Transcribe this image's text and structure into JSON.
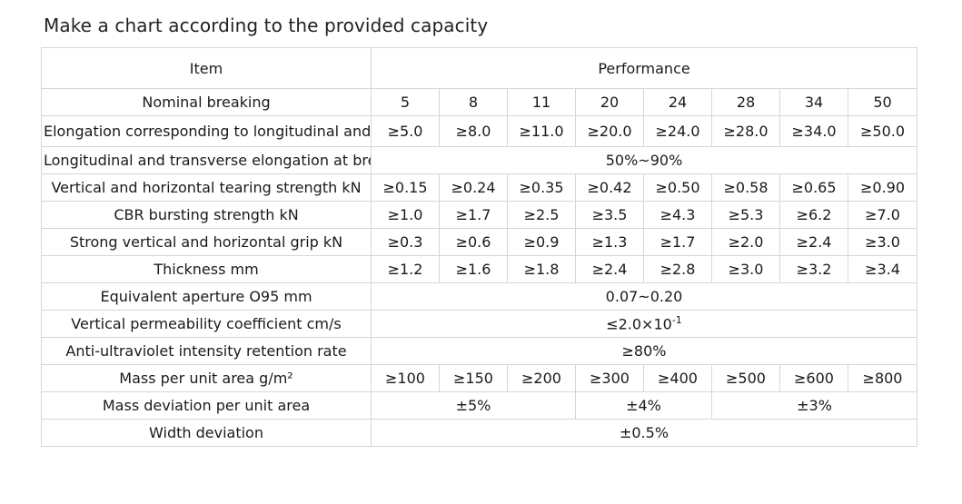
{
  "title": "Make a chart according to the provided capacity",
  "header": {
    "item": "Item",
    "performance": "Performance"
  },
  "rows": {
    "nominal": {
      "label": "Nominal breaking",
      "values": [
        "5",
        "8",
        "11",
        "20",
        "24",
        "28",
        "34",
        "50"
      ]
    },
    "elongation_std": {
      "label": "Elongation corresponding to longitudinal and transverse standard strength",
      "values": [
        "≥5.0",
        "≥8.0",
        "≥11.0",
        "≥20.0",
        "≥24.0",
        "≥28.0",
        "≥34.0",
        "≥50.0"
      ]
    },
    "elongation_break": {
      "label": "Longitudinal and transverse elongation at break",
      "value": "50%~90%"
    },
    "tearing": {
      "label": "Vertical and horizontal tearing strength kN",
      "values": [
        "≥0.15",
        "≥0.24",
        "≥0.35",
        "≥0.42",
        "≥0.50",
        "≥0.58",
        "≥0.65",
        "≥0.90"
      ]
    },
    "cbr": {
      "label": "CBR bursting strength kN",
      "values": [
        "≥1.0",
        "≥1.7",
        "≥2.5",
        "≥3.5",
        "≥4.3",
        "≥5.3",
        "≥6.2",
        "≥7.0"
      ]
    },
    "grip": {
      "label": "Strong vertical and horizontal grip kN",
      "values": [
        "≥0.3",
        "≥0.6",
        "≥0.9",
        "≥1.3",
        "≥1.7",
        "≥2.0",
        "≥2.4",
        "≥3.0"
      ]
    },
    "thickness": {
      "label": "Thickness mm",
      "values": [
        "≥1.2",
        "≥1.6",
        "≥1.8",
        "≥2.4",
        "≥2.8",
        "≥3.0",
        "≥3.2",
        "≥3.4"
      ]
    },
    "aperture": {
      "label": "Equivalent aperture O95 mm",
      "value": "0.07~0.20"
    },
    "permeability": {
      "label": "Vertical permeability coefficient cm/s",
      "value_base": "≤2.0×10",
      "value_exp": "-1"
    },
    "uv": {
      "label": "Anti-ultraviolet intensity retention rate",
      "value": "≥80%"
    },
    "mass": {
      "label": "Mass per unit area g/m²",
      "values": [
        "≥100",
        "≥150",
        "≥200",
        "≥300",
        "≥400",
        "≥500",
        "≥600",
        "≥800"
      ]
    },
    "mass_dev": {
      "label": "Mass deviation per unit area",
      "values": [
        "±5%",
        "±4%",
        "±3%"
      ]
    },
    "width_dev": {
      "label": "Width deviation",
      "value": "±0.5%"
    }
  }
}
